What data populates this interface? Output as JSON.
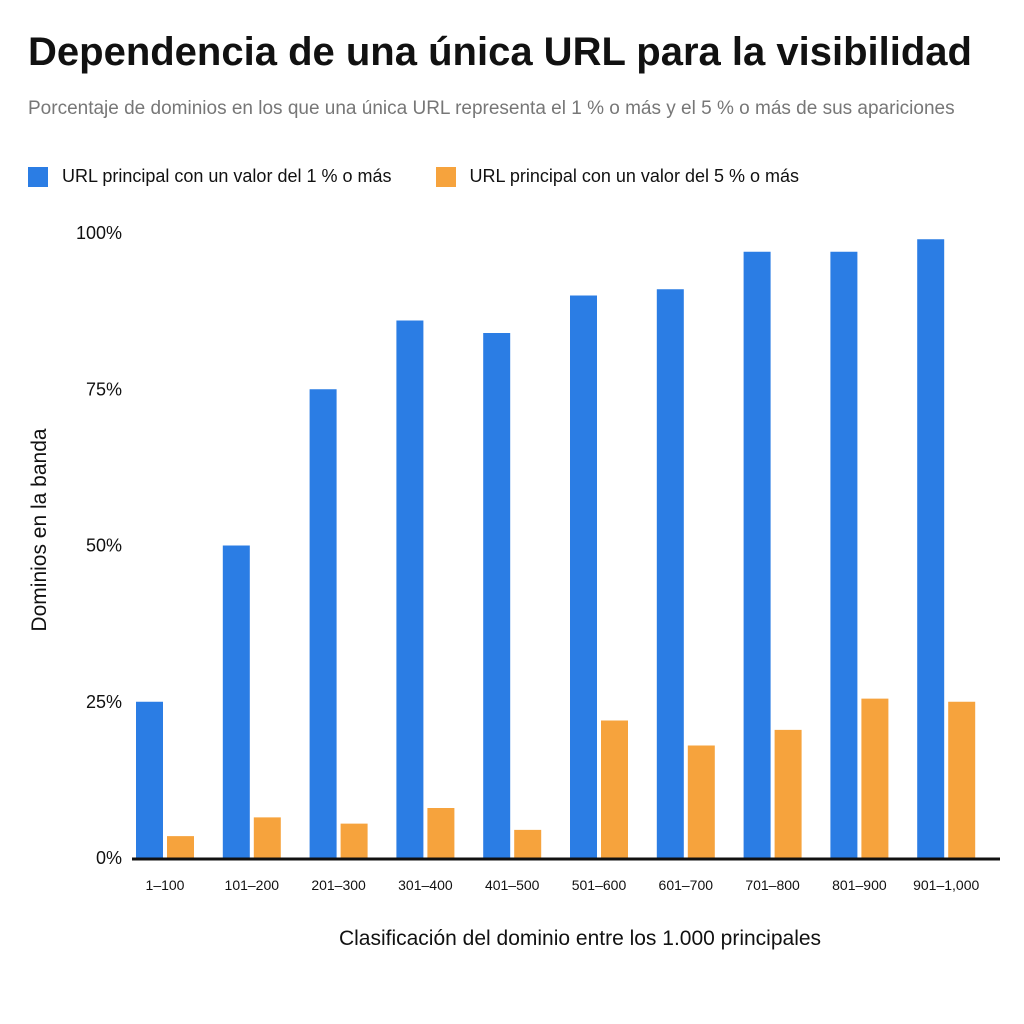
{
  "chart_data": {
    "type": "bar",
    "title": "Dependencia de una única URL para la visibilidad",
    "subtitle": "Porcentaje de dominios en los que una única URL representa el 1 % o más y el 5 % o más de sus apariciones",
    "xlabel": "Clasificación del dominio entre los 1.000 principales",
    "ylabel": "Dominios en la banda",
    "ylim": [
      0,
      100
    ],
    "yticks": [
      0,
      25,
      50,
      75,
      100
    ],
    "ytick_labels": [
      "0%",
      "25%",
      "50%",
      "75%",
      "100%"
    ],
    "grid": false,
    "legend_position": "top-left",
    "categories": [
      "1–100",
      "101–200",
      "201–300",
      "301–400",
      "401–500",
      "501–600",
      "601–700",
      "701–800",
      "801–900",
      "901–1,000"
    ],
    "series": [
      {
        "name": "URL principal con un valor del 1 % o más",
        "color": "#2b7de4",
        "values": [
          25,
          50,
          75,
          86,
          84,
          90,
          91,
          97,
          97,
          99
        ]
      },
      {
        "name": "URL principal con un valor del 5 % o más",
        "color": "#f6a33d",
        "values": [
          3.5,
          6.5,
          5.5,
          8,
          4.5,
          22,
          18,
          20.5,
          25.5,
          25
        ]
      }
    ]
  }
}
